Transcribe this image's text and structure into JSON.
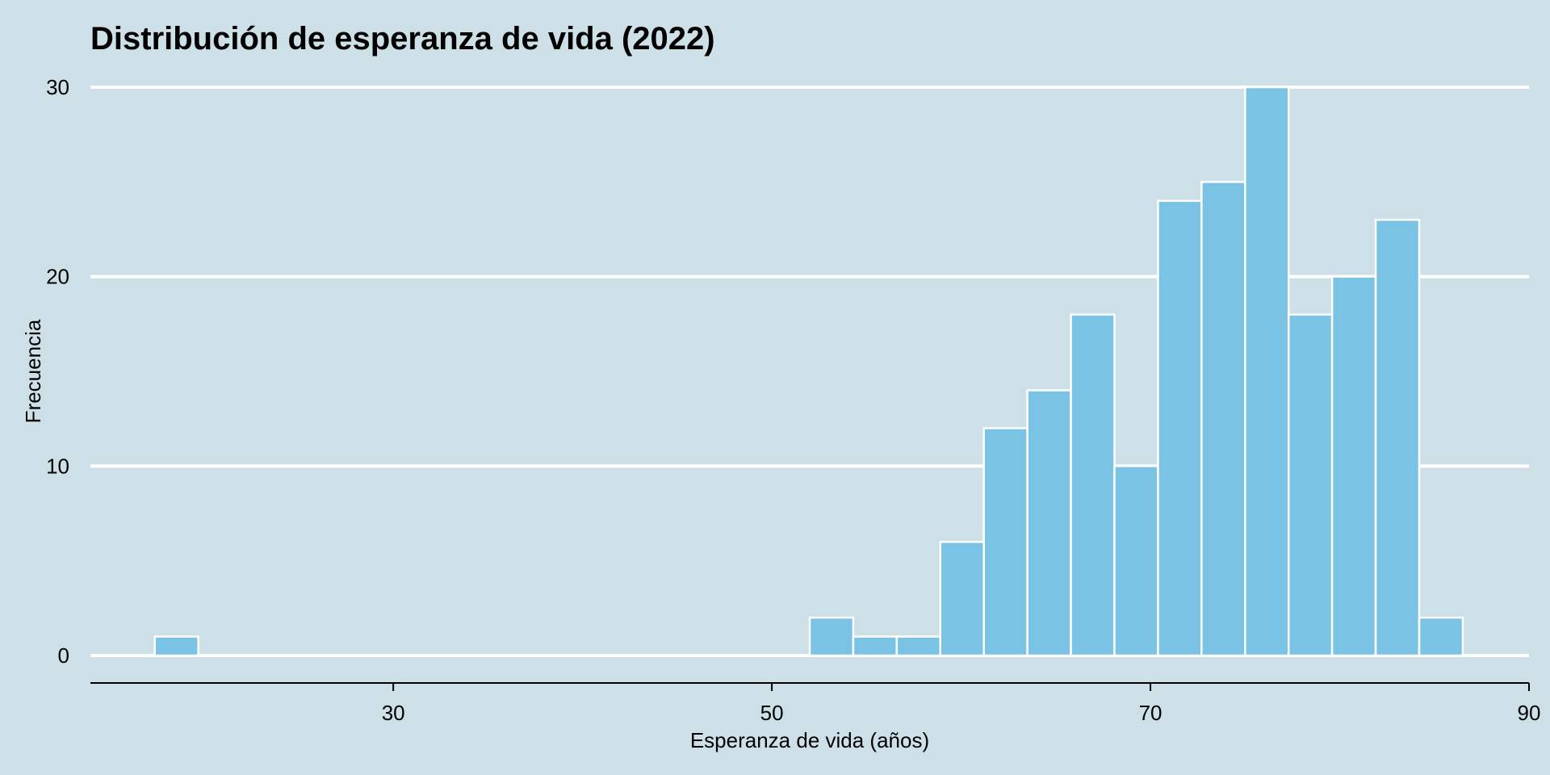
{
  "chart_data": {
    "type": "bar",
    "title": "Distribución de esperanza de vida (2022)",
    "xlabel": "Esperanza de vida (años)",
    "ylabel": "Frecuencia",
    "xlim": [
      14,
      90
    ],
    "ylim": [
      0,
      30
    ],
    "xticks": [
      30,
      50,
      70,
      90
    ],
    "yticks": [
      0,
      10,
      20,
      30
    ],
    "grid": "horizontal",
    "bin_width": 2.3,
    "bins": [
      {
        "start": 17.4,
        "count": 1
      },
      {
        "start": 52.0,
        "count": 2
      },
      {
        "start": 54.3,
        "count": 1
      },
      {
        "start": 56.6,
        "count": 1
      },
      {
        "start": 58.9,
        "count": 6
      },
      {
        "start": 61.2,
        "count": 12
      },
      {
        "start": 63.5,
        "count": 14
      },
      {
        "start": 65.8,
        "count": 18
      },
      {
        "start": 68.1,
        "count": 10
      },
      {
        "start": 70.4,
        "count": 24
      },
      {
        "start": 72.7,
        "count": 25
      },
      {
        "start": 75.0,
        "count": 30
      },
      {
        "start": 77.3,
        "count": 18
      },
      {
        "start": 79.6,
        "count": 20
      },
      {
        "start": 81.9,
        "count": 23
      },
      {
        "start": 84.2,
        "count": 2
      }
    ],
    "colors": {
      "background": "#cde0e7",
      "bar_fill": "#7ac3e5",
      "bar_stroke": "#ffffff",
      "grid": "#ffffff",
      "axis": "#000000",
      "text": "#000000"
    }
  }
}
